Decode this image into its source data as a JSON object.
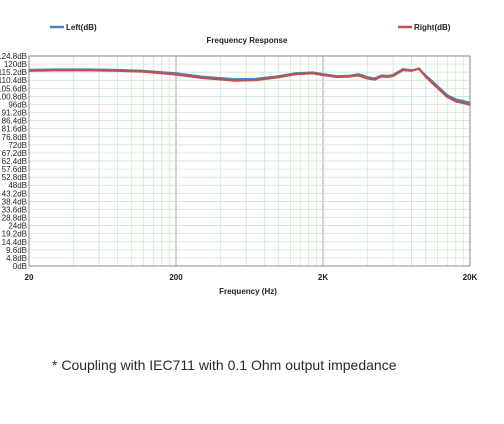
{
  "chart_data": {
    "type": "line",
    "title": "Frequency Response",
    "xlabel": "Frequency (Hz)",
    "ylabel": "",
    "x_scale": "log",
    "xlim": [
      20,
      20000
    ],
    "ylim": [
      0,
      124.8
    ],
    "x_tick_labels": [
      "20",
      "200",
      "2K",
      "20K"
    ],
    "x_tick_values": [
      20,
      200,
      2000,
      20000
    ],
    "y_tick_labels": [
      "0dB",
      "4.8dB",
      "9.6dB",
      "14.4dB",
      "19.2dB",
      "24dB",
      "28.8dB",
      "33.6dB",
      "38.4dB",
      "43.2dB",
      "48dB",
      "52.8dB",
      "57.6dB",
      "62.4dB",
      "67.2dB",
      "72dB",
      "76.8dB",
      "81.6dB",
      "86.4dB",
      "91.2dB",
      "96dB",
      "100.8dB",
      "105.6dB",
      "110.4dB",
      "115.2dB",
      "120dB",
      "124.8dB"
    ],
    "grid": true,
    "legend_position": "top",
    "x": [
      20,
      30,
      50,
      80,
      120,
      200,
      300,
      500,
      700,
      1000,
      1300,
      1700,
      2000,
      2500,
      3000,
      3500,
      4000,
      4500,
      5000,
      5500,
      6000,
      7000,
      8000,
      9000,
      10000,
      11000,
      12500,
      14000,
      16000,
      18000,
      20000
    ],
    "series": [
      {
        "name": "Left(dB)",
        "color": "#4f81bd",
        "values": [
          116.5,
          116.8,
          116.8,
          116.5,
          116.0,
          114.5,
          112.5,
          111.0,
          111.2,
          112.8,
          114.5,
          115.0,
          114.0,
          112.8,
          113.0,
          114.0,
          112.2,
          111.5,
          113.2,
          113.0,
          113.5,
          117.0,
          116.3,
          117.0,
          113.2,
          110.0,
          105.5,
          101.5,
          99.0,
          98.0,
          97.0
        ]
      },
      {
        "name": "Right(dB)",
        "color": "#c0504d",
        "values": [
          116.0,
          116.3,
          116.3,
          116.0,
          115.5,
          113.8,
          111.8,
          110.2,
          110.5,
          112.2,
          114.0,
          114.5,
          113.5,
          112.3,
          112.6,
          113.3,
          111.5,
          110.8,
          112.7,
          112.4,
          113.0,
          116.5,
          116.0,
          117.3,
          112.5,
          109.0,
          104.5,
          100.5,
          97.8,
          96.8,
          95.8
        ]
      }
    ]
  },
  "caption": "* Coupling with IEC711 with 0.1 Ohm output impedance"
}
